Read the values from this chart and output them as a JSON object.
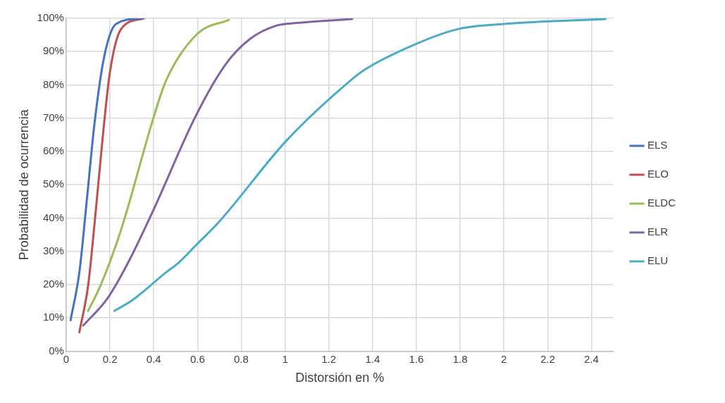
{
  "chart_data": {
    "type": "line",
    "xlabel": "Distorsión en %",
    "ylabel": "Probabilidad de ocurrencia",
    "xlim": [
      0,
      2.5
    ],
    "xticks": [
      0,
      0.2,
      0.4,
      0.6,
      0.8,
      1,
      1.2,
      1.4,
      1.6,
      1.8,
      2,
      2.2,
      2.4
    ],
    "ylim": [
      0,
      100
    ],
    "yticks": [
      {
        "value": 0,
        "label": "0%"
      },
      {
        "value": 10,
        "label": "10%"
      },
      {
        "value": 20,
        "label": "20%"
      },
      {
        "value": 30,
        "label": "30%"
      },
      {
        "value": 40,
        "label": "40%"
      },
      {
        "value": 50,
        "label": "50%"
      },
      {
        "value": 60,
        "label": "60%"
      },
      {
        "value": 70,
        "label": "70%"
      },
      {
        "value": 80,
        "label": "80%"
      },
      {
        "value": 90,
        "label": "90%"
      },
      {
        "value": 100,
        "label": "100%"
      }
    ],
    "grid": true,
    "legend": "right",
    "marker": "none",
    "line_style": "solid",
    "series": [
      {
        "name": "ELS",
        "color": "#4472c4",
        "x": [
          0.02,
          0.06,
          0.096,
          0.13,
          0.174,
          0.228,
          0.35
        ],
        "values": [
          9.3,
          23.6,
          46.6,
          68.8,
          88.6,
          98.3,
          100
        ]
      },
      {
        "name": "ELO",
        "color": "#c0504d",
        "x": [
          0.06,
          0.1,
          0.13,
          0.17,
          0.2,
          0.25,
          0.355
        ],
        "values": [
          5.7,
          19.6,
          38.6,
          66.4,
          83.9,
          96.7,
          100
        ]
      },
      {
        "name": "ELDC",
        "color": "#9bbb59",
        "x": [
          0.1,
          0.156,
          0.25,
          0.4,
          0.455,
          0.6,
          0.743
        ],
        "values": [
          12.1,
          19.6,
          36.3,
          70.4,
          81.1,
          95.4,
          99.5
        ]
      },
      {
        "name": "ELR",
        "color": "#8064a2",
        "x": [
          0.078,
          0.19,
          0.29,
          0.4,
          0.59,
          0.73,
          0.84,
          0.96,
          1.055,
          1.307
        ],
        "values": [
          7.7,
          16,
          27.5,
          42.6,
          70.4,
          86.3,
          93.8,
          97.8,
          98.6,
          99.8
        ]
      },
      {
        "name": "ELU",
        "color": "#4bacc6",
        "x": [
          0.22,
          0.3,
          0.455,
          0.516,
          0.6,
          0.695,
          1.007,
          1.295,
          1.367,
          1.595,
          1.786,
          2.0,
          2.464
        ],
        "values": [
          12.1,
          15.2,
          23.6,
          26.7,
          32.3,
          38.6,
          63.3,
          81.1,
          84.7,
          92.2,
          96.7,
          98.3,
          99.8
        ]
      }
    ]
  }
}
